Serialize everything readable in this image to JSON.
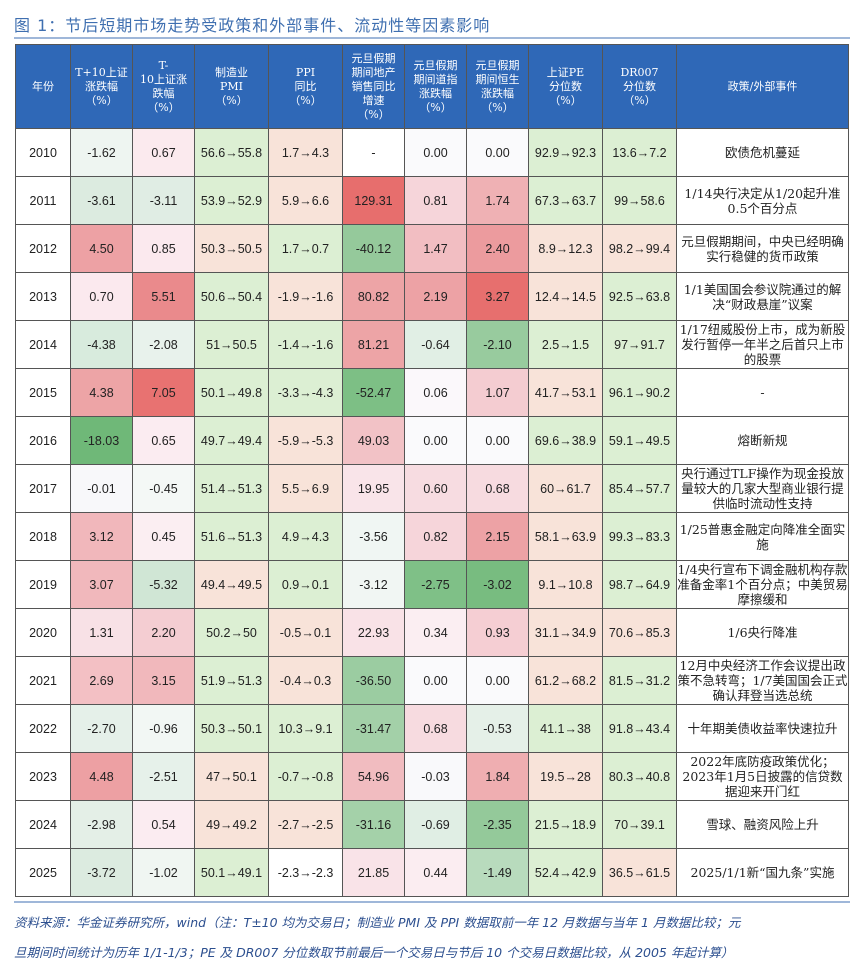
{
  "title": "图 1：节后短期市场走势受政策和外部事件、流动性等因素影响",
  "table": {
    "headers": [
      "年份",
      "T+10上证涨跌幅（%）",
      "T-10上证涨跌幅（%）",
      "制造业PMI（%）",
      "PPI同比（%）",
      "元旦假期期间地产销售同比增速（%）",
      "元旦假期期间道指涨跌幅（%）",
      "元旦假期期间恒生涨跌幅（%）",
      "上证PE分位数（%）",
      "DR007分位数（%）",
      "政策/外部事件"
    ],
    "rows": [
      {
        "cells": [
          "2010",
          "-1.62",
          "0.67",
          "56.6→55.8",
          "1.7→4.3",
          "-",
          "0.00",
          "0.00",
          "92.9→92.3",
          "13.6→7.2",
          "欧债危机蔓延"
        ],
        "colors": [
          "#ffffff",
          "#eef5f1",
          "#fbeaee",
          "#dcefd3",
          "#f8e3d9",
          "#ffffff",
          "#fafafc",
          "#fafafc",
          "#dcefd3",
          "#dcefd3",
          "#ffffff"
        ]
      },
      {
        "cells": [
          "2011",
          "-3.61",
          "-3.11",
          "53.9→52.9",
          "5.9→6.6",
          "129.31",
          "0.81",
          "1.74",
          "67.3→63.7",
          "99→58.6",
          "1/14央行决定从1/20起升准0.5个百分点"
        ],
        "colors": [
          "#ffffff",
          "#dcebe0",
          "#e0ede4",
          "#dcefd3",
          "#f8e3d9",
          "#e76e6d",
          "#f6d5da",
          "#efb1b4",
          "#dcefd3",
          "#dcefd3",
          "#ffffff"
        ]
      },
      {
        "cells": [
          "2012",
          "4.50",
          "0.85",
          "50.3→50.5",
          "1.7→0.7",
          "-40.12",
          "1.47",
          "2.40",
          "8.9→12.3",
          "98.2→99.4",
          "元旦假期期间，中央已经明确实行稳健的货币政策"
        ],
        "colors": [
          "#ffffff",
          "#eda1a4",
          "#fbe9ee",
          "#f8e3d9",
          "#dcefd3",
          "#95c99b",
          "#f2bec2",
          "#ec9b9e",
          "#f8e3d9",
          "#f8e3d9",
          "#ffffff"
        ]
      },
      {
        "cells": [
          "2013",
          "0.70",
          "5.51",
          "50.6→50.4",
          "-1.9→-1.6",
          "80.82",
          "2.19",
          "3.27",
          "12.4→14.5",
          "92.5→63.8",
          "1/1美国国会参议院通过的解决“财政悬崖”议案"
        ],
        "colors": [
          "#ffffff",
          "#fbe9ee",
          "#ea8a8c",
          "#dcefd3",
          "#f8e3d9",
          "#eda4a6",
          "#eda2a5",
          "#e76f6e",
          "#f8e3d9",
          "#dcefd3",
          "#ffffff"
        ]
      },
      {
        "cells": [
          "2014",
          "-4.38",
          "-2.08",
          "51→50.5",
          "-1.4→-1.6",
          "81.21",
          "-0.64",
          "-2.10",
          "2.5→1.5",
          "97→91.7",
          "1/17纽威股份上市，成为新股发行暂停一年半之后首只上市的股票"
        ],
        "colors": [
          "#ffffff",
          "#d8ebdd",
          "#e8f2ec",
          "#dcefd3",
          "#dcefd3",
          "#eda4a6",
          "#e1efe5",
          "#98cb9e",
          "#dcefd3",
          "#dcefd3",
          "#ffffff"
        ]
      },
      {
        "cells": [
          "2015",
          "4.38",
          "7.05",
          "50.1→49.8",
          "-3.3→-4.3",
          "-52.47",
          "0.06",
          "1.07",
          "41.7→53.1",
          "96.1→90.2",
          "-"
        ],
        "colors": [
          "#ffffff",
          "#eda4a6",
          "#e87271",
          "#dcefd3",
          "#dcefd3",
          "#7dbf85",
          "#fbf8fb",
          "#f4ccd1",
          "#f8e3d9",
          "#dcefd3",
          "#ffffff"
        ]
      },
      {
        "cells": [
          "2016",
          "-18.03",
          "0.65",
          "49.7→49.4",
          "-5.9→-5.3",
          "49.03",
          "0.00",
          "0.00",
          "69.6→38.9",
          "59.1→49.5",
          "熔断新规"
        ],
        "colors": [
          "#ffffff",
          "#6fb878",
          "#fbecf1",
          "#dcefd3",
          "#f8e3d9",
          "#f2c2c6",
          "#fafafc",
          "#fafafc",
          "#dcefd3",
          "#dcefd3",
          "#ffffff"
        ]
      },
      {
        "cells": [
          "2017",
          "-0.01",
          "-0.45",
          "51.4→51.3",
          "5.5→6.9",
          "19.95",
          "0.60",
          "0.68",
          "60→61.7",
          "85.4→57.7",
          "央行通过TLF操作为现金投放量较大的几家大型商业银行提供临时流动性支持"
        ],
        "colors": [
          "#ffffff",
          "#f8f8fa",
          "#f4f8f6",
          "#dcefd3",
          "#f8e3d9",
          "#f9e4e9",
          "#f7dce1",
          "#f7dbe0",
          "#f8e3d9",
          "#dcefd3",
          "#ffffff"
        ]
      },
      {
        "cells": [
          "2018",
          "3.12",
          "0.45",
          "51.6→51.3",
          "4.9→4.3",
          "-3.56",
          "0.82",
          "2.15",
          "58.1→63.9",
          "99.3→83.3",
          "1/25普惠金融定向降准全面实施"
        ],
        "colors": [
          "#ffffff",
          "#f1b7bb",
          "#fbeef2",
          "#dcefd3",
          "#dcefd3",
          "#f0f6f3",
          "#f6d5da",
          "#eda2a5",
          "#f8e3d9",
          "#dcefd3",
          "#ffffff"
        ]
      },
      {
        "cells": [
          "2019",
          "3.07",
          "-5.32",
          "49.4→49.5",
          "0.9→0.1",
          "-3.12",
          "-2.75",
          "-3.02",
          "9.1→10.8",
          "98.7→64.9",
          "1/4央行宣布下调金融机构存款准备金率1个百分点；中美贸易摩擦缓和"
        ],
        "colors": [
          "#ffffff",
          "#f1b8bc",
          "#d0e6d5",
          "#f8e3d9",
          "#dcefd3",
          "#f1f6f3",
          "#7fc087",
          "#78bc80",
          "#f8e3d9",
          "#dcefd3",
          "#ffffff"
        ]
      },
      {
        "cells": [
          "2020",
          "1.31",
          "2.20",
          "50.2→50",
          "-0.5→0.1",
          "22.93",
          "0.34",
          "0.93",
          "31.1→34.9",
          "70.6→85.3",
          "1/6央行降准"
        ],
        "colors": [
          "#ffffff",
          "#f8e1e6",
          "#f4cdd2",
          "#dcefd3",
          "#f8e3d9",
          "#f9e2e7",
          "#fbeef2",
          "#f5ced3",
          "#f8e3d9",
          "#f8e3d9",
          "#ffffff"
        ]
      },
      {
        "cells": [
          "2021",
          "2.69",
          "3.15",
          "51.9→51.3",
          "-0.4→0.3",
          "-36.50",
          "0.00",
          "0.00",
          "61.2→68.2",
          "81.5→31.2",
          "12月中央经济工作会议提出政策不急转弯；1/7美国国会正式确认拜登当选总统"
        ],
        "colors": [
          "#ffffff",
          "#f3c0c4",
          "#f1b8bc",
          "#dcefd3",
          "#f8e3d9",
          "#9bcca1",
          "#fafafc",
          "#fafafc",
          "#f8e3d9",
          "#dcefd3",
          "#ffffff"
        ]
      },
      {
        "cells": [
          "2022",
          "-2.70",
          "-0.96",
          "50.3→50.1",
          "10.3→9.1",
          "-31.47",
          "0.68",
          "-0.53",
          "41.1→38",
          "91.8→43.4",
          "十年期美债收益率快速拉升"
        ],
        "colors": [
          "#ffffff",
          "#e5f0e9",
          "#f2f7f4",
          "#dcefd3",
          "#dcefd3",
          "#a3d0a8",
          "#f7dbe0",
          "#e5f0e8",
          "#dcefd3",
          "#dcefd3",
          "#ffffff"
        ]
      },
      {
        "cells": [
          "2023",
          "4.48",
          "-2.51",
          "47→50.1",
          "-0.7→-0.8",
          "54.96",
          "-0.03",
          "1.84",
          "19.5→28",
          "80.3→40.8",
          "2022年底防疫政策优化；2023年1月5日披露的信贷数据迎来开门红"
        ],
        "colors": [
          "#ffffff",
          "#eda0a3",
          "#e6f1ea",
          "#f8e3d9",
          "#dcefd3",
          "#f1bcc0",
          "#f9f9fb",
          "#efaeb1",
          "#f8e3d9",
          "#dcefd3",
          "#ffffff"
        ]
      },
      {
        "cells": [
          "2024",
          "-2.98",
          "0.54",
          "49→49.2",
          "-2.7→-2.5",
          "-31.16",
          "-0.69",
          "-2.35",
          "21.5→18.9",
          "70→39.1",
          "雪球、融资风险上升"
        ],
        "colors": [
          "#ffffff",
          "#e4efe7",
          "#fbecf1",
          "#f8e3d9",
          "#f8e3d9",
          "#a4d1a9",
          "#e0eee4",
          "#94c99a",
          "#dcefd3",
          "#dcefd3",
          "#ffffff"
        ]
      },
      {
        "cells": [
          "2025",
          "-3.72",
          "-1.02",
          "50.1→49.1",
          "-2.3→-2.3",
          "21.85",
          "0.44",
          "-1.49",
          "52.4→42.9",
          "36.5→61.5",
          "2025/1/1新“国九条”实施"
        ],
        "colors": [
          "#ffffff",
          "#dcebe0",
          "#f0f6f2",
          "#dcefd3",
          "#ffffff",
          "#f9e3e8",
          "#fbedf1",
          "#b8dbbd",
          "#dcefd3",
          "#f8e3d9",
          "#ffffff"
        ]
      }
    ]
  },
  "footnote": {
    "line1": "资料来源：华金证券研究所，wind（注：T±10 均为交易日；制造业 PMI 及 PPI 数据取前一年 12 月数据与当年 1 月数据比较；元",
    "line2": "旦期间时间统计为历年 1/1-1/3；PE 及 DR007 分位数取节前最后一个交易日与节后 10 个交易日数据比较，从 2005 年起计算）"
  },
  "colors": {
    "header_bg": "#2f68b7",
    "title_color": "#3f6fb0",
    "rule_color": "#9fb7d9",
    "footnote_color": "#2c4f8f"
  }
}
